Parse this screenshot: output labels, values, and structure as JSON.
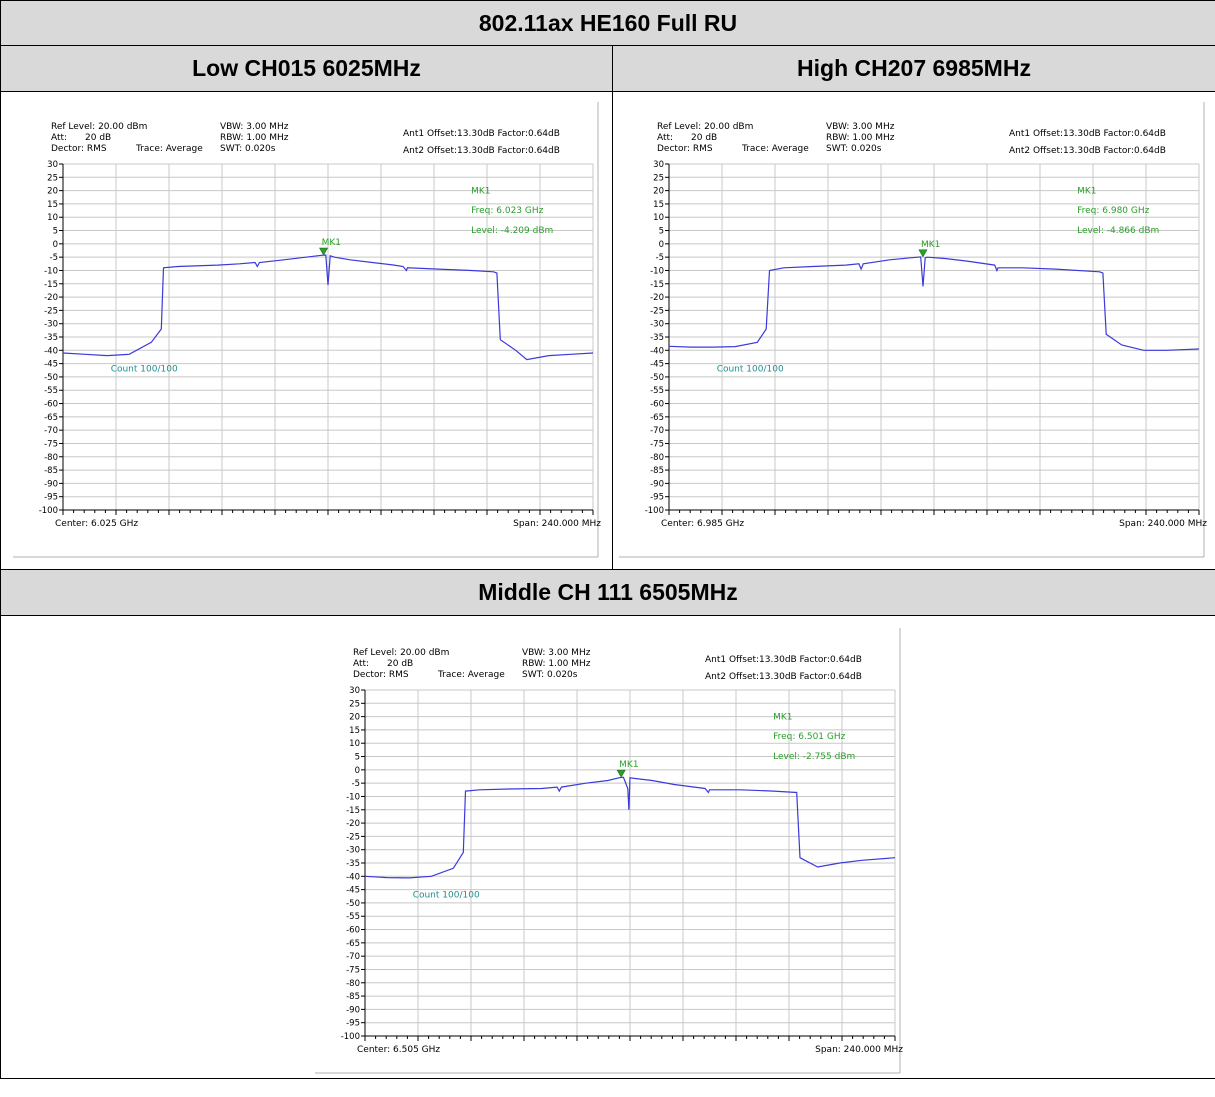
{
  "title": "802.11ax HE160 Full RU",
  "plots": [
    {
      "heading": "Low CH015 6025MHz",
      "ref_level": "Ref Level: 20.00 dBm",
      "att_label": "Att:",
      "att_value": "20 dB",
      "detector": "Dector: RMS",
      "trace": "Trace: Average",
      "vbw": "VBW: 3.00 MHz",
      "rbw": "RBW: 1.00 MHz",
      "swt": "SWT: 0.020s",
      "ant1": "Ant1 Offset:13.30dB   Factor:0.64dB",
      "ant2": "Ant2 Offset:13.30dB   Factor:0.64dB",
      "count": "Count 100/100",
      "center": "Center: 6.025 GHz",
      "span": "Span: 240.000 MHz",
      "marker": {
        "label": "MK1",
        "freq": "Freq: 6.023 GHz",
        "level": "Level: -4.209 dBm"
      }
    },
    {
      "heading": "High CH207 6985MHz",
      "ref_level": "Ref Level: 20.00 dBm",
      "att_label": "Att:",
      "att_value": "20 dB",
      "detector": "Dector: RMS",
      "trace": "Trace: Average",
      "vbw": "VBW: 3.00 MHz",
      "rbw": "RBW: 1.00 MHz",
      "swt": "SWT: 0.020s",
      "ant1": "Ant1 Offset:13.30dB   Factor:0.64dB",
      "ant2": "Ant2 Offset:13.30dB   Factor:0.64dB",
      "count": "Count 100/100",
      "center": "Center: 6.985 GHz",
      "span": "Span: 240.000 MHz",
      "marker": {
        "label": "MK1",
        "freq": "Freq: 6.980 GHz",
        "level": "Level: -4.866 dBm"
      }
    },
    {
      "heading": "Middle CH 111 6505MHz",
      "ref_level": "Ref Level: 20.00 dBm",
      "att_label": "Att:",
      "att_value": "20 dB",
      "detector": "Dector: RMS",
      "trace": "Trace: Average",
      "vbw": "VBW: 3.00 MHz",
      "rbw": "RBW: 1.00 MHz",
      "swt": "SWT: 0.020s",
      "ant1": "Ant1 Offset:13.30dB   Factor:0.64dB",
      "ant2": "Ant2 Offset:13.30dB   Factor:0.64dB",
      "count": "Count 100/100",
      "center": "Center: 6.505 GHz",
      "span": "Span: 240.000 MHz",
      "marker": {
        "label": "MK1",
        "freq": "Freq: 6.501 GHz",
        "level": "Level: -2.755 dBm"
      }
    }
  ],
  "colors": {
    "trace": "#3a3adb",
    "marker": "#2aa02a",
    "count": "#1f8f8f",
    "grid": "#c8c8c8",
    "header_bg": "#d9d9d9"
  },
  "chart_data": [
    {
      "type": "line",
      "title": "Low CH015 6025MHz",
      "xlabel": "",
      "ylabel": "",
      "x_unit": "GHz",
      "y_unit": "dBm",
      "xlim": [
        5.905,
        6.145
      ],
      "ylim": [
        -100,
        30
      ],
      "yticks": [
        30,
        25,
        20,
        15,
        10,
        5,
        0,
        -5,
        -10,
        -15,
        -20,
        -25,
        -30,
        -35,
        -40,
        -45,
        -50,
        -55,
        -60,
        -65,
        -70,
        -75,
        -80,
        -85,
        -90,
        -95,
        -100
      ],
      "grid": true,
      "marker": {
        "x": 6.023,
        "y": -4.209
      },
      "series": [
        {
          "x": [
            5.905,
            5.915,
            5.925,
            5.935,
            5.945,
            5.9495,
            5.9505,
            5.957,
            5.965,
            5.975,
            5.985,
            5.992,
            5.993,
            5.994,
            6.005,
            6.015,
            6.022,
            6.024,
            6.025,
            6.026,
            6.028,
            6.035,
            6.045,
            6.055,
            6.059,
            6.0605,
            6.061,
            6.075,
            6.09,
            6.1,
            6.1015,
            6.103,
            6.11,
            6.115,
            6.125,
            6.135,
            6.145
          ],
          "y": [
            -41,
            -41.5,
            -42,
            -41.5,
            -37,
            -32,
            -9,
            -8.5,
            -8.3,
            -8,
            -7.5,
            -7,
            -8.5,
            -7,
            -6,
            -5,
            -4.3,
            -4.2,
            -15.5,
            -4.5,
            -5,
            -6,
            -7,
            -8,
            -8.5,
            -10,
            -9,
            -9.5,
            -10,
            -10.5,
            -11,
            -36,
            -40,
            -43.5,
            -42,
            -41.5,
            -41
          ]
        }
      ]
    },
    {
      "type": "line",
      "title": "High CH207 6985MHz",
      "xlabel": "",
      "ylabel": "",
      "x_unit": "GHz",
      "y_unit": "dBm",
      "xlim": [
        6.865,
        7.105
      ],
      "ylim": [
        -100,
        30
      ],
      "yticks": [
        30,
        25,
        20,
        15,
        10,
        5,
        0,
        -5,
        -10,
        -15,
        -20,
        -25,
        -30,
        -35,
        -40,
        -45,
        -50,
        -55,
        -60,
        -65,
        -70,
        -75,
        -80,
        -85,
        -90,
        -95,
        -100
      ],
      "grid": true,
      "marker": {
        "x": 6.98,
        "y": -4.866
      },
      "series": [
        {
          "x": [
            6.865,
            6.875,
            6.885,
            6.895,
            6.905,
            6.909,
            6.9105,
            6.917,
            6.93,
            6.945,
            6.951,
            6.952,
            6.953,
            6.965,
            6.975,
            6.979,
            6.98,
            6.981,
            6.982,
            6.99,
            7.0,
            7.0125,
            7.0135,
            7.014,
            7.025,
            7.04,
            7.06,
            7.0615,
            7.063,
            7.07,
            7.08,
            7.09,
            7.105
          ],
          "y": [
            -38.5,
            -38.8,
            -38.8,
            -38.6,
            -37,
            -32,
            -10,
            -9,
            -8.5,
            -8,
            -7.5,
            -9.5,
            -7.5,
            -6,
            -5.2,
            -4.9,
            -16,
            -5.2,
            -5,
            -5.5,
            -6.5,
            -8,
            -10,
            -9,
            -9,
            -9.5,
            -10.5,
            -11,
            -34,
            -38,
            -40,
            -40,
            -39.5
          ]
        }
      ]
    },
    {
      "type": "line",
      "title": "Middle CH 111 6505MHz",
      "xlabel": "",
      "ylabel": "",
      "x_unit": "GHz",
      "y_unit": "dBm",
      "xlim": [
        6.385,
        6.625
      ],
      "ylim": [
        -100,
        30
      ],
      "yticks": [
        30,
        25,
        20,
        15,
        10,
        5,
        0,
        -5,
        -10,
        -15,
        -20,
        -25,
        -30,
        -35,
        -40,
        -45,
        -50,
        -55,
        -60,
        -65,
        -70,
        -75,
        -80,
        -85,
        -90,
        -95,
        -100
      ],
      "grid": true,
      "marker": {
        "x": 6.501,
        "y": -2.755
      },
      "series": [
        {
          "x": [
            6.385,
            6.395,
            6.405,
            6.415,
            6.425,
            6.4295,
            6.4305,
            6.437,
            6.45,
            6.465,
            6.472,
            6.473,
            6.474,
            6.485,
            6.495,
            6.5,
            6.502,
            6.504,
            6.5045,
            6.505,
            6.507,
            6.515,
            6.525,
            6.539,
            6.5405,
            6.541,
            6.555,
            6.57,
            6.5805,
            6.582,
            6.59,
            6.6,
            6.61,
            6.625
          ],
          "y": [
            -40,
            -40.5,
            -40.6,
            -40,
            -37,
            -31,
            -8,
            -7.5,
            -7.2,
            -7,
            -6.5,
            -8,
            -6.5,
            -5,
            -4,
            -3,
            -2.8,
            -7,
            -15,
            -3,
            -3.2,
            -4,
            -5.5,
            -7,
            -8.5,
            -7.5,
            -7.5,
            -8,
            -8.5,
            -33,
            -36.5,
            -35,
            -34,
            -33
          ]
        }
      ]
    }
  ]
}
